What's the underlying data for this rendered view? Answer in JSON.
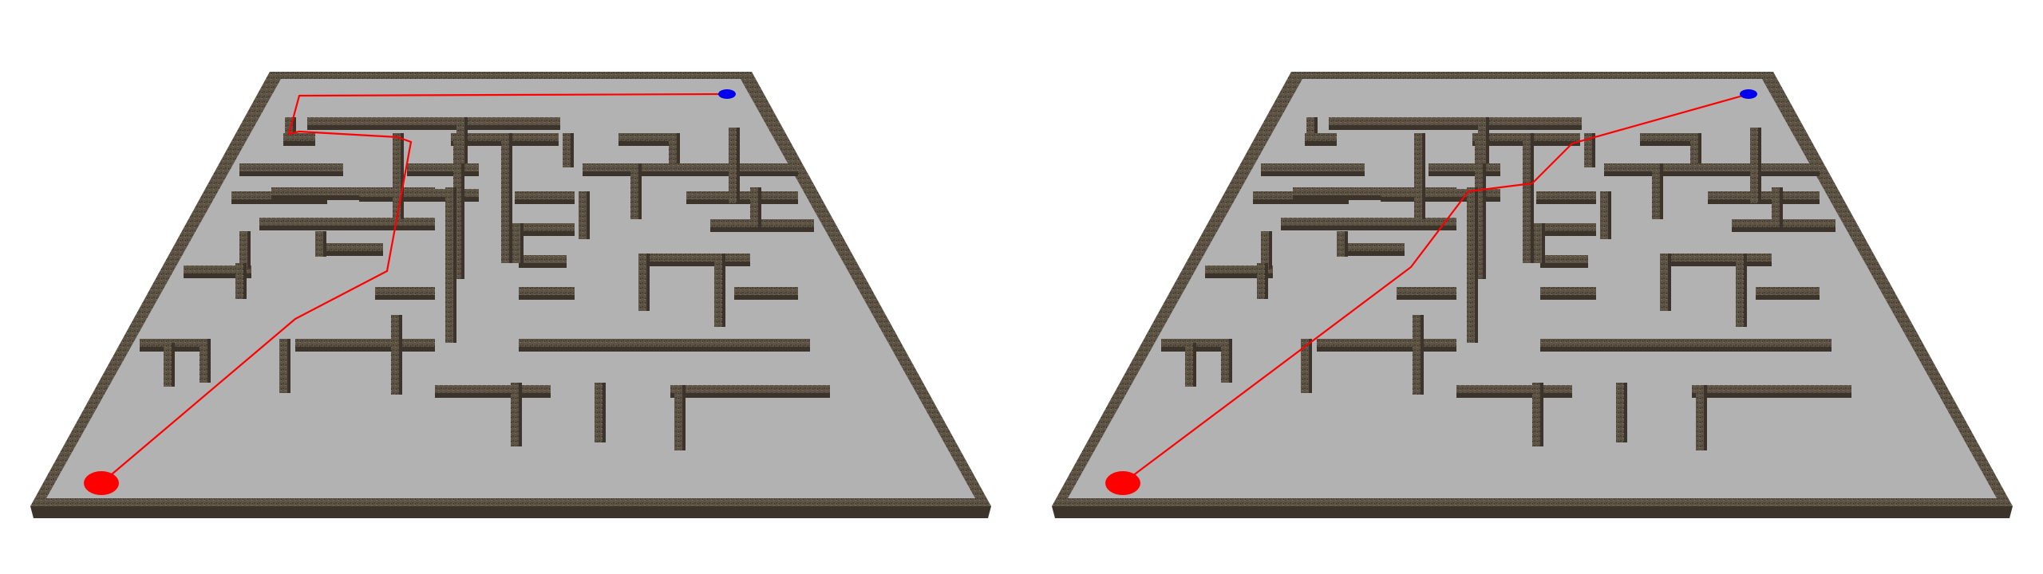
{
  "scene": {
    "background_color": "#ffffff",
    "floor_color": "#b2b2b2",
    "wall_color": "#5e5446",
    "wall_top_color": "#6b5f4e",
    "wall_side_color": "#3c342a",
    "start_marker": {
      "color": "#ff0000",
      "shape": "ellipse"
    },
    "goal_marker": {
      "color": "#0000ee",
      "shape": "ellipse"
    },
    "path_color": "#ff0000"
  },
  "panels": [
    {
      "id": "left",
      "path_kind": "grid-aligned path through maze corridors"
    },
    {
      "id": "right",
      "path_kind": "near-direct path cutting through maze walls"
    }
  ]
}
